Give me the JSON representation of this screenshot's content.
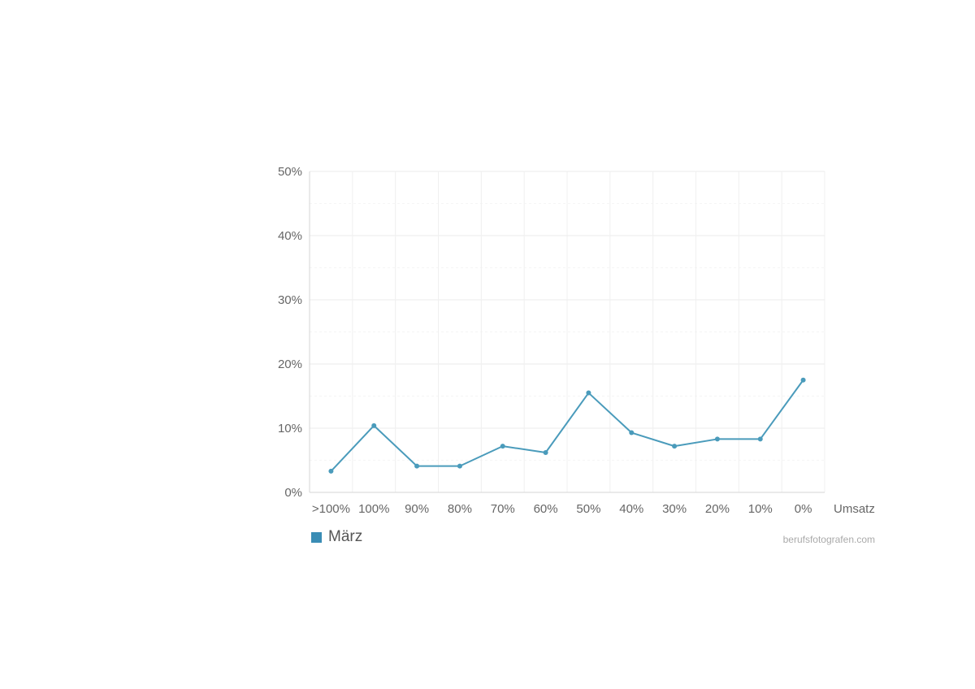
{
  "chart_data": {
    "type": "line",
    "categories": [
      ">100%",
      "100%",
      "90%",
      "80%",
      "70%",
      "60%",
      "50%",
      "40%",
      "30%",
      "20%",
      "10%",
      "0%"
    ],
    "series": [
      {
        "name": "März",
        "values": [
          3.3,
          10.4,
          4.1,
          4.1,
          7.2,
          6.2,
          15.5,
          9.3,
          7.2,
          8.3,
          8.3,
          17.5
        ]
      }
    ],
    "y_ticks": [
      "0%",
      "10%",
      "20%",
      "30%",
      "40%",
      "50%"
    ],
    "ylim": [
      0,
      50
    ],
    "xlabel": "Umsatz",
    "grid": true,
    "legend_position": "bottom-left",
    "color": "#4a9bbb"
  },
  "legend": {
    "swatch_color": "#3a8db5"
  },
  "source": "berufsfotografen.com"
}
